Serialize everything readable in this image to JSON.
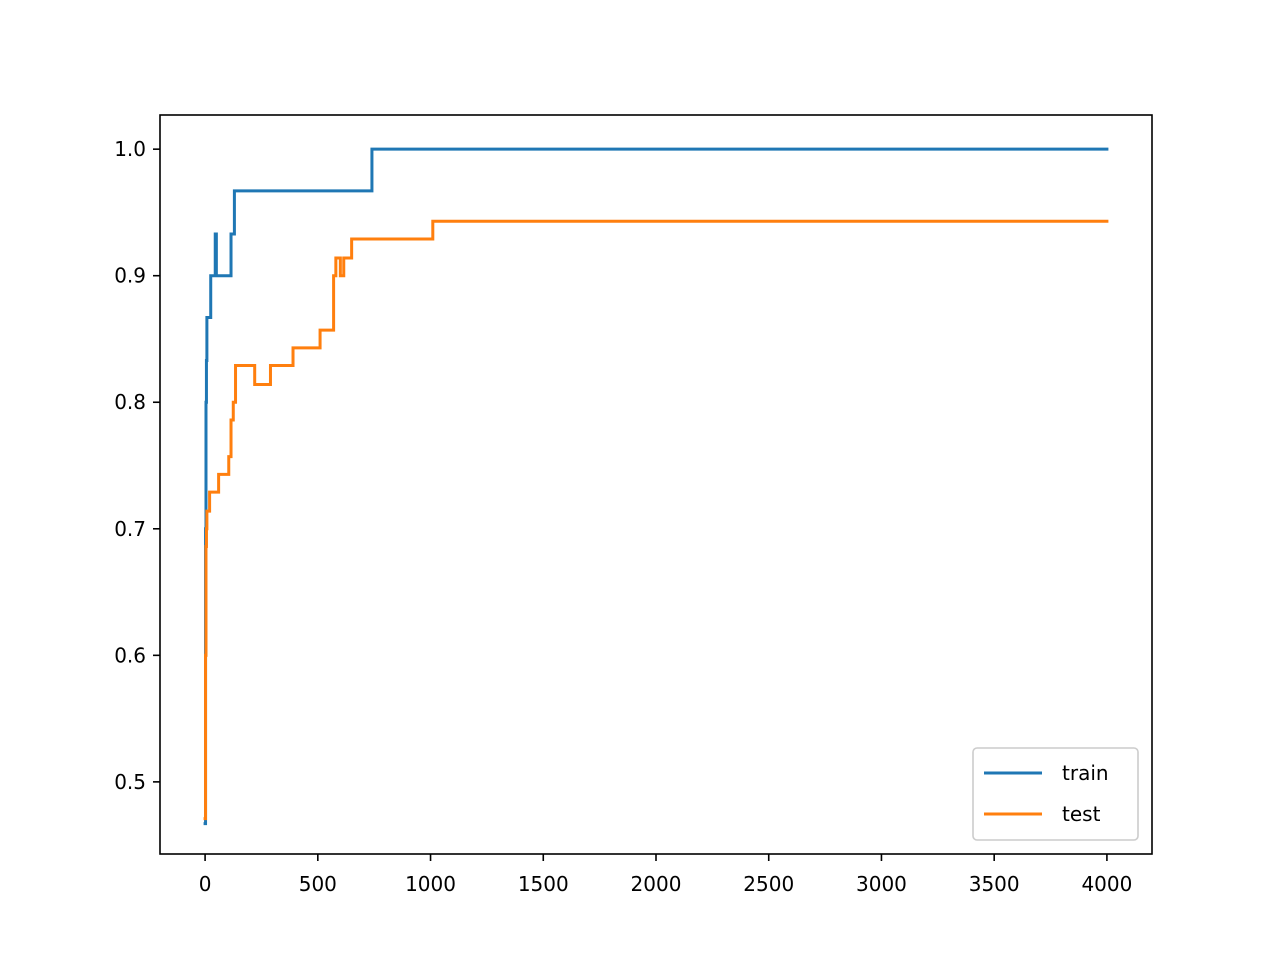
{
  "chart_data": {
    "type": "line",
    "title": "",
    "xlabel": "",
    "ylabel": "",
    "xlim": [
      -200,
      4200
    ],
    "ylim": [
      0.443,
      1.027
    ],
    "xticks": [
      0,
      500,
      1000,
      1500,
      2000,
      2500,
      3000,
      3500,
      4000
    ],
    "xtick_labels": [
      "0",
      "500",
      "1000",
      "1500",
      "2000",
      "2500",
      "3000",
      "3500",
      "4000"
    ],
    "yticks": [
      0.5,
      0.6,
      0.7,
      0.8,
      0.9,
      1.0
    ],
    "ytick_labels": [
      "0.5",
      "0.6",
      "0.7",
      "0.8",
      "0.9",
      "1.0"
    ],
    "grid": false,
    "legend_position": "lower-right",
    "series": [
      {
        "name": "train",
        "color": "#1f77b4",
        "x": [
          0,
          2,
          2,
          4,
          4,
          6,
          6,
          8,
          8,
          10,
          10,
          15,
          15,
          25,
          25,
          45,
          45,
          50,
          50,
          115,
          115,
          130,
          130,
          740,
          740,
          4000
        ],
        "y": [
          0.467,
          0.467,
          0.7,
          0.7,
          0.8,
          0.8,
          0.833,
          0.833,
          0.867,
          0.867,
          0.867,
          0.867,
          0.867,
          0.867,
          0.9,
          0.9,
          0.933,
          0.933,
          0.9,
          0.9,
          0.933,
          0.933,
          0.967,
          0.967,
          1.0,
          1.0
        ]
      },
      {
        "name": "test",
        "color": "#ff7f0e",
        "x": [
          0,
          2,
          2,
          4,
          4,
          6,
          6,
          8,
          8,
          20,
          20,
          40,
          40,
          60,
          60,
          105,
          105,
          115,
          115,
          125,
          125,
          135,
          135,
          220,
          220,
          290,
          290,
          390,
          390,
          510,
          510,
          570,
          570,
          580,
          580,
          600,
          600,
          615,
          615,
          650,
          650,
          1010,
          1010,
          4000
        ],
        "y": [
          0.471,
          0.471,
          0.6,
          0.6,
          0.686,
          0.686,
          0.7,
          0.7,
          0.714,
          0.714,
          0.729,
          0.729,
          0.729,
          0.729,
          0.743,
          0.743,
          0.757,
          0.757,
          0.786,
          0.786,
          0.8,
          0.8,
          0.829,
          0.829,
          0.814,
          0.814,
          0.829,
          0.829,
          0.843,
          0.843,
          0.857,
          0.857,
          0.9,
          0.9,
          0.914,
          0.914,
          0.9,
          0.9,
          0.914,
          0.914,
          0.929,
          0.929,
          0.943,
          0.943
        ]
      }
    ]
  }
}
